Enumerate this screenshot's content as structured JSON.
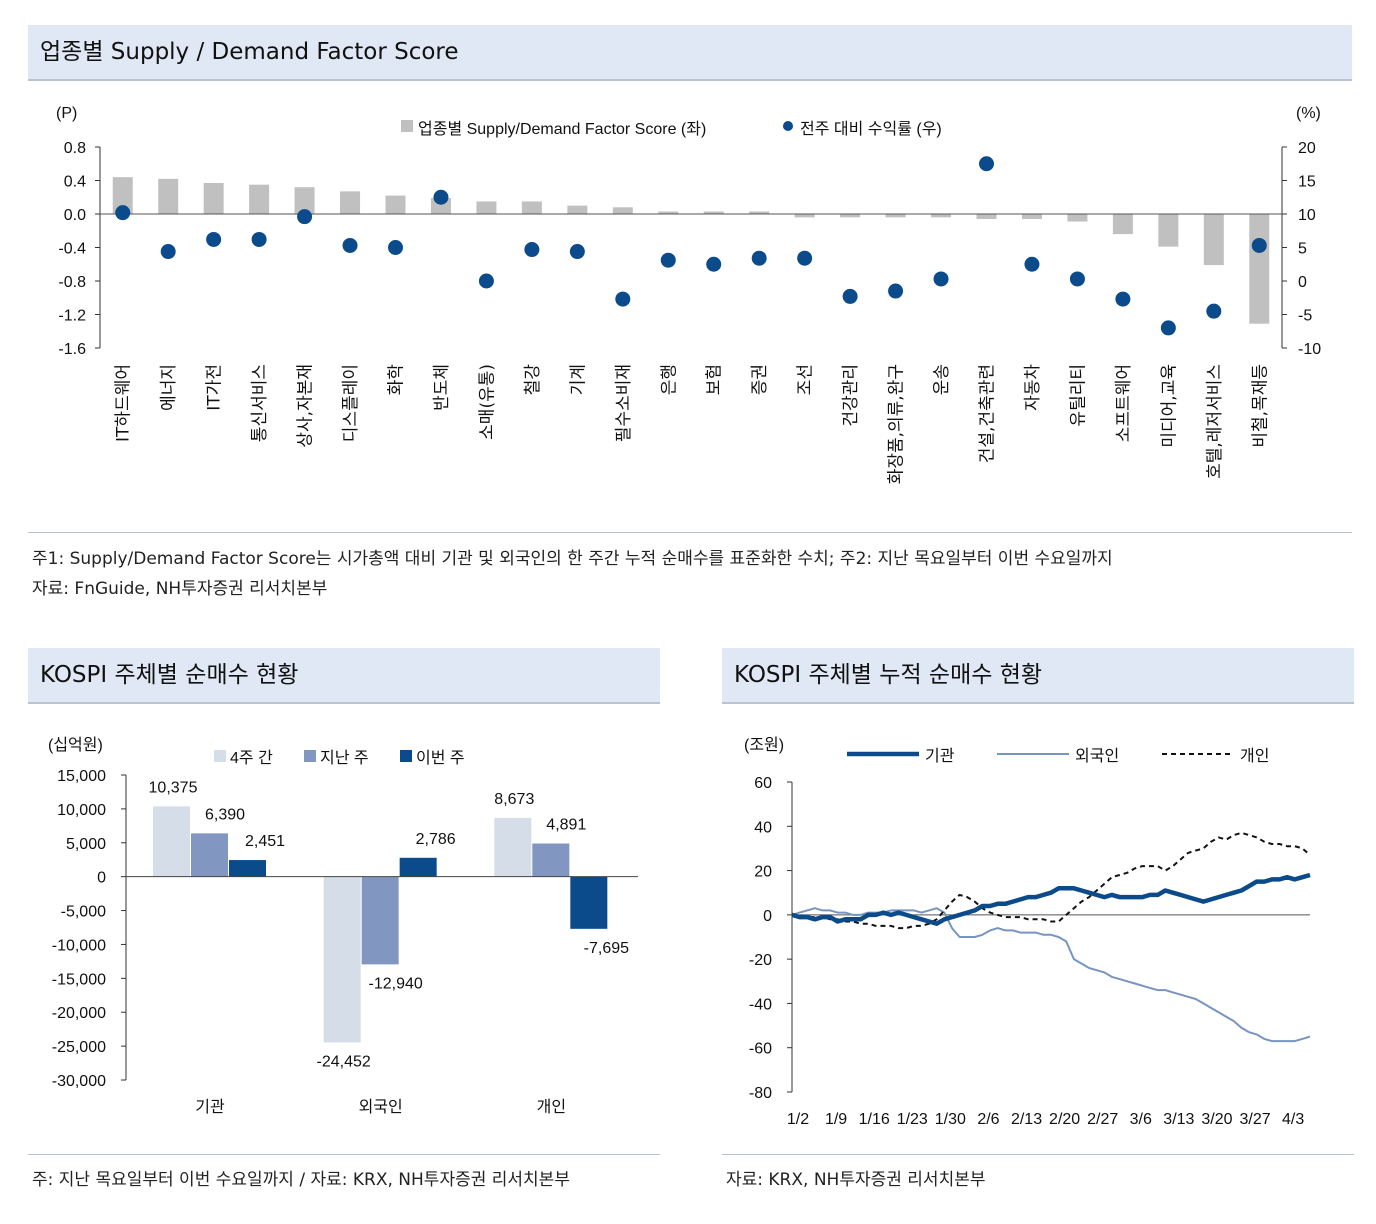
{
  "top": {
    "title": "업종별  Supply / Demand Factor Score",
    "note1": "주1: Supply/Demand Factor Score는 시가총액 대비 기관 및 외국인의 한 주간 누적 순매수를 표준화한 수치; 주2: 지난 목요일부터 이번 수요일까지",
    "note2": "자료: FnGuide, NH투자증권 리서치본부"
  },
  "bottom_left": {
    "title": "KOSPI 주체별 순매수 현황",
    "note": "주: 지난 목요일부터 이번 수요일까지 / 자료: KRX, NH투자증권 리서치본부"
  },
  "bottom_right": {
    "title": "KOSPI 주체별 누적 순매수 현황",
    "note": "자료: KRX, NH투자증권 리서치본부"
  },
  "colors": {
    "bar_gray": "#c0c0c0",
    "dot_blue": "#0b4a8b",
    "light": "#d5dee8",
    "mid": "#8196c0",
    "dark": "#0b4a8b",
    "inst": "#0b4a8b",
    "foreign": "#7894c0",
    "indiv": "#111111"
  },
  "chart_data": [
    {
      "type": "bar",
      "title": "업종별 Supply/Demand Factor Score",
      "left_unit": "(P)",
      "right_unit": "(%)",
      "ylim_left": [
        -1.6,
        0.8
      ],
      "ylim_right": [
        -10,
        20
      ],
      "left_ticks": [
        "0.8",
        "0.4",
        "0.0",
        "-0.4",
        "-0.8",
        "-1.2",
        "-1.6"
      ],
      "right_ticks": [
        "20",
        "15",
        "10",
        "5",
        "0",
        "-5",
        "-10"
      ],
      "legend": [
        "업종별 Supply/Demand Factor Score (좌)",
        "전주 대비 수익률 (우)"
      ],
      "categories": [
        "IT하드웨어",
        "에너지",
        "IT가전",
        "통신서비스",
        "상사,자본재",
        "디스플레이",
        "화학",
        "반도체",
        "소매(유통)",
        "철강",
        "기계",
        "필수소비재",
        "은행",
        "보험",
        "증권",
        "조선",
        "건강관리",
        "화장품,의류,완구",
        "운송",
        "건설,건축관련",
        "자동차",
        "유틸리티",
        "소프트웨어",
        "미디어,교육",
        "호텔,레저서비스",
        "비철,목재등"
      ],
      "series": [
        {
          "name": "업종별 Supply/Demand Factor Score (좌)",
          "kind": "bar",
          "values": [
            0.44,
            0.42,
            0.37,
            0.35,
            0.32,
            0.27,
            0.22,
            0.19,
            0.15,
            0.15,
            0.1,
            0.08,
            0.03,
            0.03,
            0.03,
            -0.04,
            -0.04,
            -0.04,
            -0.04,
            -0.06,
            -0.06,
            -0.09,
            -0.24,
            -0.39,
            -0.61,
            -1.31
          ]
        },
        {
          "name": "전주 대비 수익률 (우)",
          "kind": "scatter",
          "values": [
            10.2,
            4.4,
            6.2,
            6.2,
            9.6,
            5.3,
            5.0,
            12.5,
            0.0,
            4.7,
            4.4,
            -2.7,
            3.1,
            2.5,
            3.4,
            3.4,
            -2.3,
            -1.5,
            0.3,
            17.5,
            2.5,
            0.3,
            -2.7,
            -7.0,
            -4.5,
            5.3
          ]
        }
      ]
    },
    {
      "type": "bar",
      "title": "KOSPI 주체별 순매수 현황",
      "unit": "(십억원)",
      "ylim": [
        -30000,
        15000
      ],
      "y_ticks": [
        "15,000",
        "10,000",
        "5,000",
        "0",
        "-5,000",
        "-10,000",
        "-15,000",
        "-20,000",
        "-25,000",
        "-30,000"
      ],
      "categories": [
        "기관",
        "외국인",
        "개인"
      ],
      "series": [
        {
          "name": "4주 간",
          "values": [
            10375,
            -24452,
            8673
          ],
          "labels": [
            "10,375",
            "-24,452",
            "8,673"
          ]
        },
        {
          "name": "지난 주",
          "values": [
            6390,
            -12940,
            4891
          ],
          "labels": [
            "6,390",
            "-12,940",
            "4,891"
          ]
        },
        {
          "name": "이번 주",
          "values": [
            2451,
            2786,
            -7695
          ],
          "labels": [
            "2,451",
            "2,786",
            "-7,695"
          ]
        }
      ]
    },
    {
      "type": "line",
      "title": "KOSPI 주체별 누적 순매수 현황",
      "unit": "(조원)",
      "ylim": [
        -80,
        60
      ],
      "y_ticks": [
        "60",
        "40",
        "20",
        "0",
        "-20",
        "-40",
        "-60",
        "-80"
      ],
      "x_ticks": [
        "1/2",
        "1/9",
        "1/16",
        "1/23",
        "1/30",
        "2/6",
        "2/13",
        "2/20",
        "2/27",
        "3/6",
        "3/13",
        "3/20",
        "3/27",
        "4/3"
      ],
      "x_range": [
        0,
        68
      ],
      "series": [
        {
          "name": "기관",
          "values": [
            0,
            -1,
            -1,
            -2,
            -1,
            -1,
            -3,
            -2,
            -2,
            -2,
            0,
            0,
            1,
            0,
            1,
            0,
            -1,
            -2,
            -3,
            -4,
            -2,
            -1,
            0,
            1,
            2,
            4,
            4,
            5,
            5,
            6,
            7,
            8,
            8,
            9,
            10,
            12,
            12,
            12,
            11,
            10,
            9,
            8,
            9,
            8,
            8,
            8,
            8,
            9,
            9,
            11,
            10,
            9,
            8,
            7,
            6,
            7,
            8,
            9,
            10,
            11,
            13,
            15,
            15,
            16,
            16,
            17,
            16,
            17,
            18
          ]
        },
        {
          "name": "외국인",
          "values": [
            0,
            1,
            2,
            3,
            2,
            2,
            1,
            1,
            0,
            0,
            1,
            1,
            1,
            2,
            2,
            2,
            2,
            1,
            2,
            3,
            1,
            -6,
            -10,
            -10,
            -10,
            -9,
            -7,
            -6,
            -7,
            -7,
            -8,
            -8,
            -8,
            -9,
            -9,
            -10,
            -12,
            -20,
            -22,
            -24,
            -25,
            -26,
            -28,
            -29,
            -30,
            -31,
            -32,
            -33,
            -34,
            -34,
            -35,
            -36,
            -37,
            -38,
            -40,
            -42,
            -44,
            -46,
            -48,
            -51,
            -53,
            -54,
            -56,
            -57,
            -57,
            -57,
            -57,
            -56,
            -55
          ]
        },
        {
          "name": "개인",
          "values": [
            0,
            0,
            -1,
            -1,
            -1,
            -2,
            -2,
            -3,
            -3,
            -4,
            -4,
            -5,
            -5,
            -5,
            -6,
            -6,
            -5,
            -5,
            -4,
            -2,
            2,
            6,
            9,
            8,
            6,
            3,
            1,
            0,
            -1,
            -1,
            -1,
            -2,
            -2,
            -2,
            -3,
            -3,
            0,
            3,
            6,
            8,
            11,
            14,
            17,
            18,
            19,
            21,
            22,
            22,
            22,
            20,
            22,
            25,
            28,
            29,
            30,
            33,
            35,
            34,
            36,
            37,
            36,
            35,
            33,
            32,
            32,
            31,
            31,
            30,
            27
          ]
        }
      ]
    }
  ]
}
